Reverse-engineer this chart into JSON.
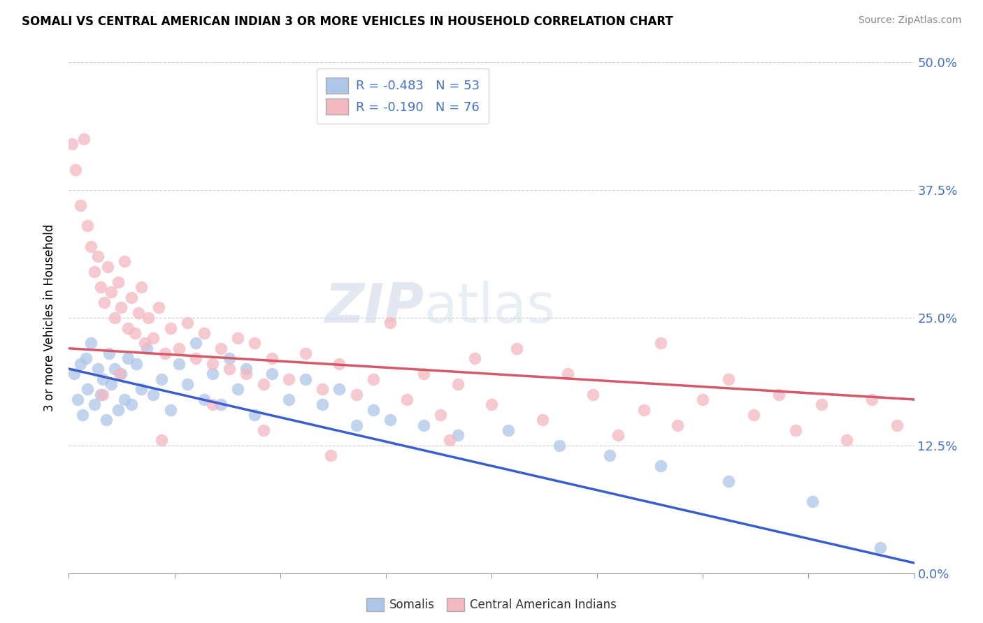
{
  "title": "SOMALI VS CENTRAL AMERICAN INDIAN 3 OR MORE VEHICLES IN HOUSEHOLD CORRELATION CHART",
  "source": "Source: ZipAtlas.com",
  "ylabel": "3 or more Vehicles in Household",
  "ytick_labels": [
    "0.0%",
    "12.5%",
    "25.0%",
    "37.5%",
    "50.0%"
  ],
  "ytick_values": [
    0.0,
    12.5,
    25.0,
    37.5,
    50.0
  ],
  "xtick_values": [
    0.0,
    6.25,
    12.5,
    18.75,
    25.0,
    31.25,
    37.5,
    43.75,
    50.0
  ],
  "xlim": [
    0.0,
    50.0
  ],
  "ylim": [
    0.0,
    50.0
  ],
  "somali_color": "#aec6e8",
  "central_american_color": "#f4b8c1",
  "somali_line_color": "#3a5fcd",
  "central_american_line_color": "#d45a6a",
  "somali_r": -0.483,
  "somali_n": 53,
  "central_american_r": -0.19,
  "central_american_n": 76,
  "watermark_zip": "ZIP",
  "watermark_atlas": "atlas",
  "somali_points": [
    [
      0.3,
      19.5
    ],
    [
      0.5,
      17.0
    ],
    [
      0.7,
      20.5
    ],
    [
      0.8,
      15.5
    ],
    [
      1.0,
      21.0
    ],
    [
      1.1,
      18.0
    ],
    [
      1.3,
      22.5
    ],
    [
      1.5,
      16.5
    ],
    [
      1.7,
      20.0
    ],
    [
      1.9,
      17.5
    ],
    [
      2.0,
      19.0
    ],
    [
      2.2,
      15.0
    ],
    [
      2.4,
      21.5
    ],
    [
      2.5,
      18.5
    ],
    [
      2.7,
      20.0
    ],
    [
      2.9,
      16.0
    ],
    [
      3.1,
      19.5
    ],
    [
      3.3,
      17.0
    ],
    [
      3.5,
      21.0
    ],
    [
      3.7,
      16.5
    ],
    [
      4.0,
      20.5
    ],
    [
      4.3,
      18.0
    ],
    [
      4.6,
      22.0
    ],
    [
      5.0,
      17.5
    ],
    [
      5.5,
      19.0
    ],
    [
      6.0,
      16.0
    ],
    [
      6.5,
      20.5
    ],
    [
      7.0,
      18.5
    ],
    [
      7.5,
      22.5
    ],
    [
      8.0,
      17.0
    ],
    [
      8.5,
      19.5
    ],
    [
      9.0,
      16.5
    ],
    [
      9.5,
      21.0
    ],
    [
      10.0,
      18.0
    ],
    [
      10.5,
      20.0
    ],
    [
      11.0,
      15.5
    ],
    [
      12.0,
      19.5
    ],
    [
      13.0,
      17.0
    ],
    [
      14.0,
      19.0
    ],
    [
      15.0,
      16.5
    ],
    [
      16.0,
      18.0
    ],
    [
      17.0,
      14.5
    ],
    [
      18.0,
      16.0
    ],
    [
      19.0,
      15.0
    ],
    [
      21.0,
      14.5
    ],
    [
      23.0,
      13.5
    ],
    [
      26.0,
      14.0
    ],
    [
      29.0,
      12.5
    ],
    [
      32.0,
      11.5
    ],
    [
      35.0,
      10.5
    ],
    [
      39.0,
      9.0
    ],
    [
      44.0,
      7.0
    ],
    [
      48.0,
      2.5
    ]
  ],
  "central_american_points": [
    [
      0.2,
      42.0
    ],
    [
      0.4,
      39.5
    ],
    [
      0.7,
      36.0
    ],
    [
      0.9,
      42.5
    ],
    [
      1.1,
      34.0
    ],
    [
      1.3,
      32.0
    ],
    [
      1.5,
      29.5
    ],
    [
      1.7,
      31.0
    ],
    [
      1.9,
      28.0
    ],
    [
      2.1,
      26.5
    ],
    [
      2.3,
      30.0
    ],
    [
      2.5,
      27.5
    ],
    [
      2.7,
      25.0
    ],
    [
      2.9,
      28.5
    ],
    [
      3.1,
      26.0
    ],
    [
      3.3,
      30.5
    ],
    [
      3.5,
      24.0
    ],
    [
      3.7,
      27.0
    ],
    [
      3.9,
      23.5
    ],
    [
      4.1,
      25.5
    ],
    [
      4.3,
      28.0
    ],
    [
      4.5,
      22.5
    ],
    [
      4.7,
      25.0
    ],
    [
      5.0,
      23.0
    ],
    [
      5.3,
      26.0
    ],
    [
      5.7,
      21.5
    ],
    [
      6.0,
      24.0
    ],
    [
      6.5,
      22.0
    ],
    [
      7.0,
      24.5
    ],
    [
      7.5,
      21.0
    ],
    [
      8.0,
      23.5
    ],
    [
      8.5,
      20.5
    ],
    [
      9.0,
      22.0
    ],
    [
      9.5,
      20.0
    ],
    [
      10.0,
      23.0
    ],
    [
      10.5,
      19.5
    ],
    [
      11.0,
      22.5
    ],
    [
      11.5,
      18.5
    ],
    [
      12.0,
      21.0
    ],
    [
      13.0,
      19.0
    ],
    [
      14.0,
      21.5
    ],
    [
      15.0,
      18.0
    ],
    [
      16.0,
      20.5
    ],
    [
      17.0,
      17.5
    ],
    [
      18.0,
      19.0
    ],
    [
      19.0,
      24.5
    ],
    [
      20.0,
      17.0
    ],
    [
      21.0,
      19.5
    ],
    [
      22.0,
      15.5
    ],
    [
      23.0,
      18.5
    ],
    [
      24.0,
      21.0
    ],
    [
      25.0,
      16.5
    ],
    [
      26.5,
      22.0
    ],
    [
      28.0,
      15.0
    ],
    [
      29.5,
      19.5
    ],
    [
      31.0,
      17.5
    ],
    [
      32.5,
      13.5
    ],
    [
      34.0,
      16.0
    ],
    [
      35.0,
      22.5
    ],
    [
      36.0,
      14.5
    ],
    [
      37.5,
      17.0
    ],
    [
      39.0,
      19.0
    ],
    [
      40.5,
      15.5
    ],
    [
      42.0,
      17.5
    ],
    [
      43.0,
      14.0
    ],
    [
      44.5,
      16.5
    ],
    [
      46.0,
      13.0
    ],
    [
      47.5,
      17.0
    ],
    [
      49.0,
      14.5
    ],
    [
      2.0,
      17.5
    ],
    [
      3.0,
      19.5
    ],
    [
      5.5,
      13.0
    ],
    [
      8.5,
      16.5
    ],
    [
      11.5,
      14.0
    ],
    [
      15.5,
      11.5
    ],
    [
      22.5,
      13.0
    ]
  ]
}
